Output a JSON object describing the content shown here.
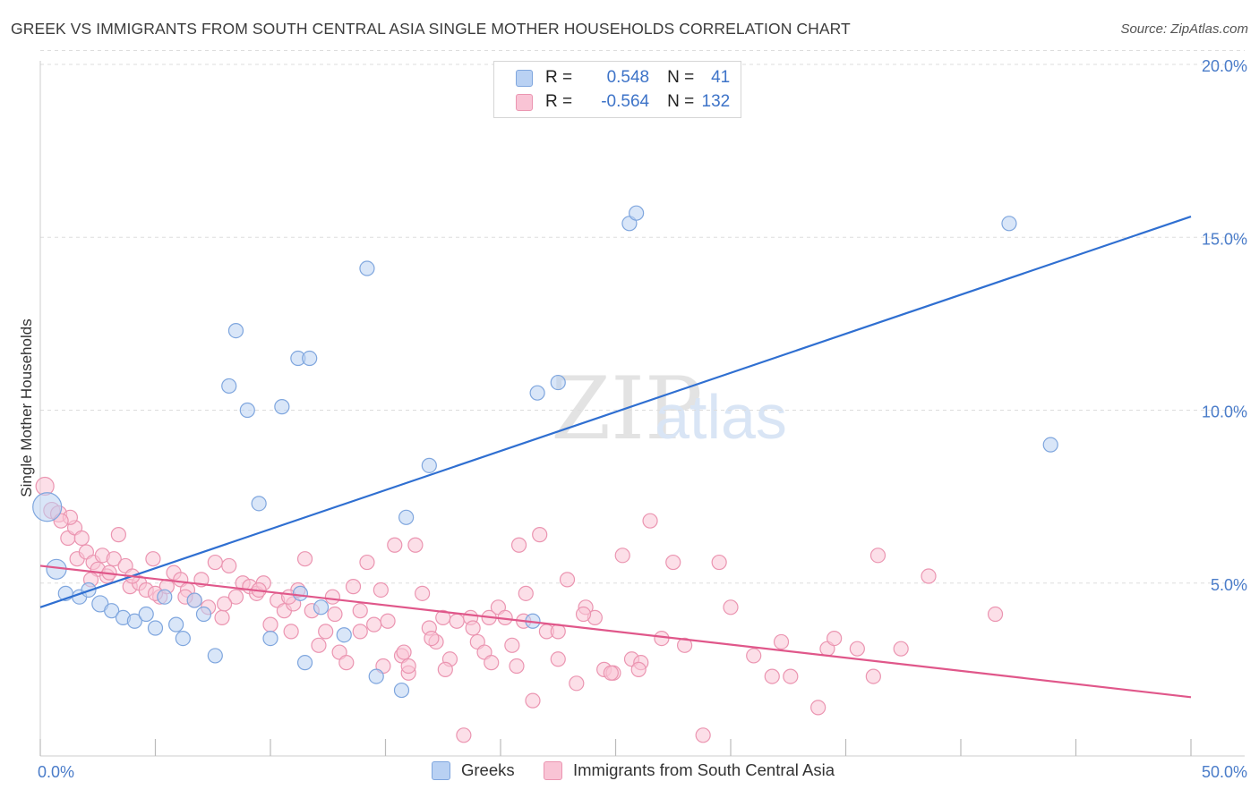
{
  "title": "GREEK VS IMMIGRANTS FROM SOUTH CENTRAL ASIA SINGLE MOTHER HOUSEHOLDS CORRELATION CHART",
  "source": "Source: ZipAtlas.com",
  "watermark": {
    "zip": "ZIP",
    "atlas": "atlas"
  },
  "legend": {
    "blue": {
      "r_label": "R =",
      "r_value": "0.548",
      "n_label": "N =",
      "n_value": "41"
    },
    "pink": {
      "r_label": "R =",
      "r_value": "-0.564",
      "n_label": "N =",
      "n_value": "132"
    }
  },
  "colors": {
    "blue_fill": "#b9d1f3",
    "blue_stroke": "#7fa6de",
    "blue_line": "#2f6fd1",
    "pink_fill": "#f9c4d5",
    "pink_stroke": "#eb95b1",
    "pink_line": "#e0578a",
    "tick_text": "#4a7cc9",
    "grid": "#dddddd"
  },
  "chart_data": {
    "type": "scatter",
    "title": "GREEK VS IMMIGRANTS FROM SOUTH CENTRAL ASIA SINGLE MOTHER HOUSEHOLDS CORRELATION CHART",
    "xlabel": "",
    "ylabel": "Single Mother Households",
    "xlim": [
      0,
      50
    ],
    "ylim": [
      0,
      20
    ],
    "x_tick_labels": [
      "0.0%",
      "50.0%"
    ],
    "y_tick_labels": [
      "5.0%",
      "10.0%",
      "15.0%",
      "20.0%"
    ],
    "y_ticks": [
      5,
      10,
      15,
      20
    ],
    "grid": true,
    "legend_position": "top-center",
    "series": [
      {
        "name": "Greeks",
        "color": "blue",
        "R": 0.548,
        "N": 41,
        "trend": {
          "x": [
            0,
            50
          ],
          "y": [
            4.3,
            15.6
          ]
        },
        "points": [
          [
            0.3,
            7.2,
            16
          ],
          [
            0.7,
            5.4,
            11
          ],
          [
            1.1,
            4.7,
            8
          ],
          [
            1.7,
            4.6,
            8
          ],
          [
            2.1,
            4.8,
            8
          ],
          [
            2.6,
            4.4,
            9
          ],
          [
            3.1,
            4.2,
            8
          ],
          [
            3.6,
            4.0,
            8
          ],
          [
            4.1,
            3.9,
            8
          ],
          [
            4.6,
            4.1,
            8
          ],
          [
            5.0,
            3.7,
            8
          ],
          [
            5.4,
            4.6,
            8
          ],
          [
            5.9,
            3.8,
            8
          ],
          [
            6.2,
            3.4,
            8
          ],
          [
            6.7,
            4.5,
            8
          ],
          [
            7.1,
            4.1,
            8
          ],
          [
            7.6,
            2.9,
            8
          ],
          [
            8.2,
            10.7,
            8
          ],
          [
            8.5,
            12.3,
            8
          ],
          [
            9.0,
            10.0,
            8
          ],
          [
            9.5,
            7.3,
            8
          ],
          [
            10.0,
            3.4,
            8
          ],
          [
            10.5,
            10.1,
            8
          ],
          [
            11.2,
            11.5,
            8
          ],
          [
            11.7,
            11.5,
            8
          ],
          [
            11.3,
            4.7,
            8
          ],
          [
            12.2,
            4.3,
            8
          ],
          [
            11.5,
            2.7,
            8
          ],
          [
            13.2,
            3.5,
            8
          ],
          [
            14.2,
            14.1,
            8
          ],
          [
            14.6,
            2.3,
            8
          ],
          [
            15.7,
            1.9,
            8
          ],
          [
            15.9,
            6.9,
            8
          ],
          [
            16.9,
            8.4,
            8
          ],
          [
            21.6,
            10.5,
            8
          ],
          [
            22.5,
            10.8,
            8
          ],
          [
            21.4,
            3.9,
            8
          ],
          [
            25.6,
            15.4,
            8
          ],
          [
            25.9,
            15.7,
            8
          ],
          [
            42.1,
            15.4,
            8
          ],
          [
            43.9,
            9.0,
            8
          ]
        ]
      },
      {
        "name": "Immigrants from South Central Asia",
        "color": "pink",
        "R": -0.564,
        "N": 132,
        "trend": {
          "x": [
            0,
            50
          ],
          "y": [
            5.5,
            1.7
          ]
        },
        "points": [
          [
            0.2,
            7.8,
            10
          ],
          [
            0.5,
            7.1,
            9
          ],
          [
            0.8,
            7.0,
            9
          ],
          [
            1.2,
            6.3,
            8
          ],
          [
            1.5,
            6.6,
            8
          ],
          [
            1.8,
            6.3,
            8
          ],
          [
            1.6,
            5.7,
            8
          ],
          [
            2.0,
            5.9,
            8
          ],
          [
            2.3,
            5.6,
            8
          ],
          [
            2.7,
            5.8,
            8
          ],
          [
            2.5,
            5.4,
            8
          ],
          [
            2.9,
            5.2,
            8
          ],
          [
            3.2,
            5.7,
            8
          ],
          [
            3.4,
            6.4,
            8
          ],
          [
            3.7,
            5.5,
            8
          ],
          [
            3.9,
            4.9,
            8
          ],
          [
            4.3,
            5.0,
            8
          ],
          [
            4.6,
            4.8,
            8
          ],
          [
            4.9,
            5.7,
            8
          ],
          [
            5.2,
            4.6,
            8
          ],
          [
            5.5,
            4.9,
            8
          ],
          [
            5.8,
            5.3,
            8
          ],
          [
            6.1,
            5.1,
            8
          ],
          [
            6.4,
            4.8,
            8
          ],
          [
            6.7,
            4.5,
            8
          ],
          [
            7.0,
            5.1,
            8
          ],
          [
            7.3,
            4.3,
            8
          ],
          [
            7.6,
            5.6,
            8
          ],
          [
            7.9,
            4.0,
            8
          ],
          [
            8.2,
            5.5,
            8
          ],
          [
            8.5,
            4.6,
            8
          ],
          [
            8.8,
            5.0,
            8
          ],
          [
            9.1,
            4.9,
            8
          ],
          [
            9.4,
            4.7,
            8
          ],
          [
            9.7,
            5.0,
            8
          ],
          [
            10.0,
            3.8,
            8
          ],
          [
            10.3,
            4.5,
            8
          ],
          [
            10.6,
            4.2,
            8
          ],
          [
            10.9,
            3.6,
            8
          ],
          [
            11.2,
            4.8,
            8
          ],
          [
            11.5,
            5.7,
            8
          ],
          [
            11.8,
            4.2,
            8
          ],
          [
            12.1,
            3.2,
            8
          ],
          [
            12.4,
            3.6,
            8
          ],
          [
            12.7,
            4.6,
            8
          ],
          [
            13.0,
            3.0,
            8
          ],
          [
            13.3,
            2.7,
            8
          ],
          [
            13.6,
            4.9,
            8
          ],
          [
            13.9,
            4.2,
            8
          ],
          [
            14.2,
            5.6,
            8
          ],
          [
            14.5,
            3.8,
            8
          ],
          [
            14.8,
            4.8,
            8
          ],
          [
            15.1,
            3.9,
            8
          ],
          [
            15.4,
            6.1,
            8
          ],
          [
            15.7,
            2.9,
            8
          ],
          [
            16.0,
            2.4,
            8
          ],
          [
            16.3,
            6.1,
            8
          ],
          [
            16.6,
            4.7,
            8
          ],
          [
            16.9,
            3.7,
            8
          ],
          [
            17.2,
            3.3,
            8
          ],
          [
            17.5,
            4.0,
            8
          ],
          [
            17.8,
            2.8,
            8
          ],
          [
            18.1,
            3.9,
            8
          ],
          [
            18.4,
            0.6,
            8
          ],
          [
            18.7,
            4.0,
            8
          ],
          [
            19.0,
            3.3,
            8
          ],
          [
            19.3,
            3.0,
            8
          ],
          [
            19.6,
            2.7,
            8
          ],
          [
            19.9,
            4.3,
            8
          ],
          [
            20.2,
            4.0,
            8
          ],
          [
            20.5,
            3.2,
            8
          ],
          [
            20.8,
            6.1,
            8
          ],
          [
            21.1,
            4.7,
            8
          ],
          [
            21.4,
            1.6,
            8
          ],
          [
            21.7,
            6.4,
            8
          ],
          [
            22.0,
            3.6,
            8
          ],
          [
            22.5,
            2.8,
            8
          ],
          [
            22.9,
            5.1,
            8
          ],
          [
            23.3,
            2.1,
            8
          ],
          [
            23.7,
            4.3,
            8
          ],
          [
            24.1,
            4.0,
            8
          ],
          [
            24.5,
            2.5,
            8
          ],
          [
            24.9,
            2.4,
            8
          ],
          [
            25.3,
            5.8,
            8
          ],
          [
            25.7,
            2.8,
            8
          ],
          [
            26.1,
            2.7,
            8
          ],
          [
            26.5,
            6.8,
            8
          ],
          [
            27.0,
            3.4,
            8
          ],
          [
            28.0,
            3.2,
            8
          ],
          [
            28.8,
            0.6,
            8
          ],
          [
            29.5,
            5.6,
            8
          ],
          [
            30.0,
            4.3,
            8
          ],
          [
            31.0,
            2.9,
            8
          ],
          [
            31.8,
            2.3,
            8
          ],
          [
            32.2,
            3.3,
            8
          ],
          [
            32.6,
            2.3,
            8
          ],
          [
            33.8,
            1.4,
            8
          ],
          [
            34.2,
            3.1,
            8
          ],
          [
            34.5,
            3.4,
            8
          ],
          [
            35.5,
            3.1,
            8
          ],
          [
            36.2,
            2.3,
            8
          ],
          [
            36.4,
            5.8,
            8
          ],
          [
            37.4,
            3.1,
            8
          ],
          [
            38.6,
            5.2,
            8
          ],
          [
            41.5,
            4.1,
            8
          ],
          [
            16.0,
            2.6,
            8
          ],
          [
            17.6,
            2.5,
            8
          ],
          [
            19.5,
            4.0,
            8
          ],
          [
            20.7,
            2.6,
            8
          ],
          [
            22.5,
            3.6,
            8
          ],
          [
            23.6,
            4.1,
            8
          ],
          [
            24.8,
            2.4,
            8
          ],
          [
            26.0,
            2.5,
            8
          ],
          [
            12.8,
            4.1,
            8
          ],
          [
            11.0,
            4.4,
            8
          ],
          [
            9.5,
            4.8,
            8
          ],
          [
            8.0,
            4.4,
            8
          ],
          [
            6.3,
            4.6,
            8
          ],
          [
            5.0,
            4.7,
            8
          ],
          [
            4.0,
            5.2,
            8
          ],
          [
            3.0,
            5.3,
            8
          ],
          [
            2.2,
            5.1,
            8
          ],
          [
            1.3,
            6.9,
            8
          ],
          [
            0.9,
            6.8,
            8
          ],
          [
            14.9,
            2.6,
            8
          ],
          [
            15.8,
            3.0,
            8
          ],
          [
            18.8,
            3.7,
            8
          ],
          [
            21.0,
            3.9,
            8
          ],
          [
            27.5,
            5.6,
            8
          ],
          [
            10.8,
            4.6,
            8
          ],
          [
            13.9,
            3.6,
            8
          ],
          [
            17.0,
            3.4,
            8
          ]
        ]
      }
    ]
  },
  "bottom_legend": {
    "greeks": "Greeks",
    "immigrants": "Immigrants from South Central Asia"
  }
}
